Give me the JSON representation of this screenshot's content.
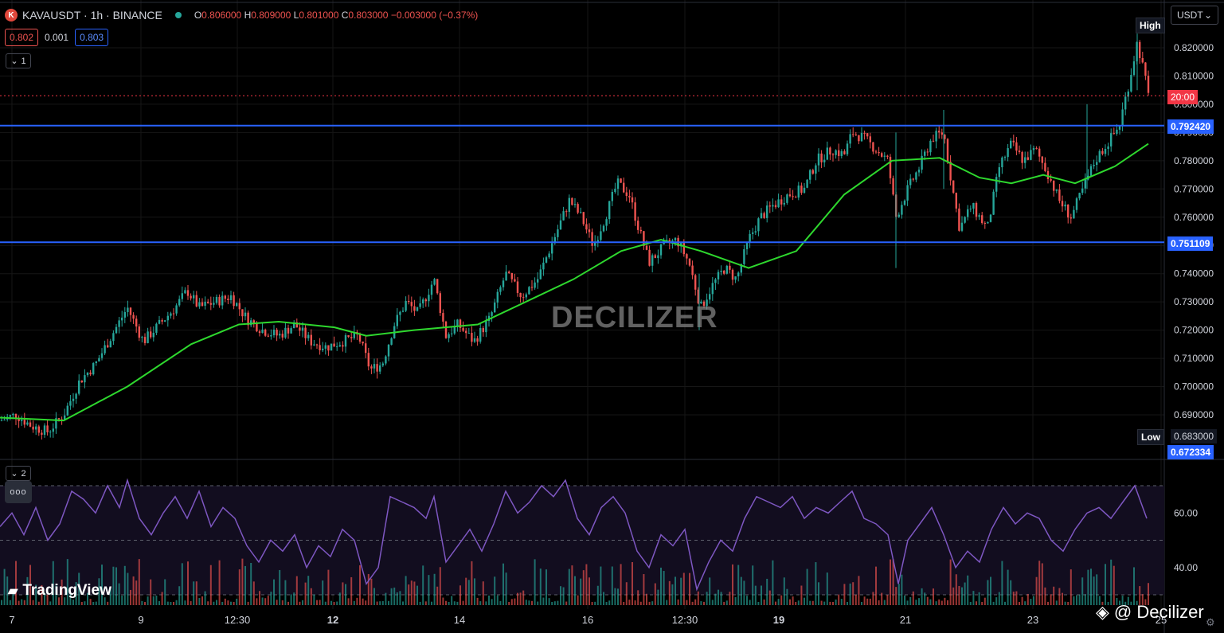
{
  "header": {
    "symbol": "KAVAUSDT · 1h · BINANCE",
    "open_label": "O",
    "open": "0.806000",
    "high_label": "H",
    "high": "0.809000",
    "low_label": "L",
    "low": "0.801000",
    "close_label": "C",
    "close": "0.803000",
    "change": "−0.003000 (−0.37%)",
    "sell_price": "0.802",
    "spread": "0.001",
    "buy_price": "0.803",
    "pane1_count": "1",
    "pane2_count": "2",
    "more_dots": "ooo"
  },
  "currency": "USDT",
  "branding": {
    "tradingview": "TradingView",
    "watermark": "DECILIZER",
    "credit": "@ Decilizer"
  },
  "price_tags": {
    "high_label": "High",
    "low_label": "Low",
    "low_value": "0.683000",
    "low_band": "0.672334",
    "countdown": "20:00",
    "resistance": "0.792420",
    "support": "0.751109"
  },
  "colors": {
    "bull": "#26a69a",
    "bear": "#ef5350",
    "ma": "#2ed82e",
    "rsi": "#7e57c2",
    "level": "#2962ff",
    "last_price": "#f23645"
  },
  "chart_data": {
    "type": "candlestick",
    "symbol": "KAVAUSDT",
    "interval": "1h",
    "price_axis": {
      "min": 0.683,
      "max": 0.825,
      "ticks": [
        "0.820000",
        "0.810000",
        "0.800000",
        "0.790000",
        "0.780000",
        "0.770000",
        "0.760000",
        "0.750000",
        "0.740000",
        "0.730000",
        "0.720000",
        "0.710000",
        "0.700000",
        "0.690000"
      ]
    },
    "time_axis": [
      "7",
      "9",
      "12:30",
      "12",
      "14",
      "16",
      "12:30",
      "19",
      "21",
      "23",
      "25"
    ],
    "horizontal_levels": [
      0.79242,
      0.751109
    ],
    "last_price": 0.803,
    "high": 0.825,
    "low": 0.683,
    "close_path": [
      [
        0,
        0.688
      ],
      [
        20,
        0.69
      ],
      [
        40,
        0.686
      ],
      [
        60,
        0.684
      ],
      [
        80,
        0.69
      ],
      [
        100,
        0.702
      ],
      [
        120,
        0.708
      ],
      [
        140,
        0.718
      ],
      [
        160,
        0.728
      ],
      [
        180,
        0.716
      ],
      [
        200,
        0.722
      ],
      [
        220,
        0.728
      ],
      [
        235,
        0.734
      ],
      [
        250,
        0.728
      ],
      [
        270,
        0.73
      ],
      [
        290,
        0.732
      ],
      [
        310,
        0.724
      ],
      [
        330,
        0.72
      ],
      [
        350,
        0.718
      ],
      [
        370,
        0.722
      ],
      [
        390,
        0.716
      ],
      [
        410,
        0.714
      ],
      [
        430,
        0.716
      ],
      [
        450,
        0.718
      ],
      [
        465,
        0.706
      ],
      [
        480,
        0.708
      ],
      [
        495,
        0.722
      ],
      [
        510,
        0.73
      ],
      [
        525,
        0.726
      ],
      [
        545,
        0.738
      ],
      [
        560,
        0.718
      ],
      [
        575,
        0.722
      ],
      [
        595,
        0.716
      ],
      [
        615,
        0.724
      ],
      [
        635,
        0.74
      ],
      [
        655,
        0.732
      ],
      [
        675,
        0.738
      ],
      [
        695,
        0.752
      ],
      [
        715,
        0.766
      ],
      [
        730,
        0.76
      ],
      [
        745,
        0.75
      ],
      [
        760,
        0.76
      ],
      [
        775,
        0.772
      ],
      [
        790,
        0.768
      ],
      [
        800,
        0.758
      ],
      [
        815,
        0.744
      ],
      [
        835,
        0.75
      ],
      [
        850,
        0.752
      ],
      [
        865,
        0.744
      ],
      [
        880,
        0.728
      ],
      [
        895,
        0.736
      ],
      [
        910,
        0.742
      ],
      [
        925,
        0.738
      ],
      [
        940,
        0.752
      ],
      [
        955,
        0.76
      ],
      [
        970,
        0.764
      ],
      [
        990,
        0.768
      ],
      [
        1010,
        0.77
      ],
      [
        1025,
        0.78
      ],
      [
        1045,
        0.784
      ],
      [
        1060,
        0.782
      ],
      [
        1070,
        0.79
      ],
      [
        1085,
        0.788
      ],
      [
        1100,
        0.784
      ],
      [
        1115,
        0.78
      ],
      [
        1125,
        0.76
      ],
      [
        1140,
        0.77
      ],
      [
        1155,
        0.778
      ],
      [
        1170,
        0.788
      ],
      [
        1185,
        0.79
      ],
      [
        1195,
        0.772
      ],
      [
        1205,
        0.756
      ],
      [
        1220,
        0.764
      ],
      [
        1240,
        0.756
      ],
      [
        1255,
        0.778
      ],
      [
        1270,
        0.786
      ],
      [
        1285,
        0.78
      ],
      [
        1300,
        0.784
      ],
      [
        1315,
        0.776
      ],
      [
        1330,
        0.766
      ],
      [
        1345,
        0.76
      ],
      [
        1360,
        0.77
      ],
      [
        1375,
        0.78
      ],
      [
        1390,
        0.786
      ],
      [
        1405,
        0.792
      ],
      [
        1418,
        0.808
      ],
      [
        1428,
        0.822
      ],
      [
        1436,
        0.812
      ],
      [
        1442,
        0.803
      ]
    ],
    "ma_path": [
      [
        0,
        0.689
      ],
      [
        80,
        0.688
      ],
      [
        160,
        0.7
      ],
      [
        240,
        0.715
      ],
      [
        300,
        0.722
      ],
      [
        350,
        0.723
      ],
      [
        420,
        0.721
      ],
      [
        460,
        0.718
      ],
      [
        520,
        0.72
      ],
      [
        600,
        0.722
      ],
      [
        660,
        0.73
      ],
      [
        720,
        0.738
      ],
      [
        780,
        0.748
      ],
      [
        830,
        0.752
      ],
      [
        880,
        0.748
      ],
      [
        940,
        0.742
      ],
      [
        1000,
        0.748
      ],
      [
        1060,
        0.768
      ],
      [
        1120,
        0.78
      ],
      [
        1180,
        0.781
      ],
      [
        1230,
        0.774
      ],
      [
        1270,
        0.772
      ],
      [
        1310,
        0.775
      ],
      [
        1350,
        0.772
      ],
      [
        1400,
        0.778
      ],
      [
        1442,
        0.786
      ]
    ],
    "rsi": {
      "levels": [
        70,
        50,
        30
      ],
      "ticks": [
        "60.00",
        "40.00"
      ],
      "path": [
        [
          0,
          55
        ],
        [
          15,
          60
        ],
        [
          30,
          52
        ],
        [
          45,
          62
        ],
        [
          60,
          50
        ],
        [
          75,
          56
        ],
        [
          90,
          68
        ],
        [
          105,
          65
        ],
        [
          120,
          60
        ],
        [
          135,
          70
        ],
        [
          150,
          62
        ],
        [
          160,
          72
        ],
        [
          175,
          58
        ],
        [
          190,
          52
        ],
        [
          205,
          60
        ],
        [
          220,
          66
        ],
        [
          235,
          58
        ],
        [
          250,
          68
        ],
        [
          265,
          55
        ],
        [
          280,
          62
        ],
        [
          295,
          58
        ],
        [
          310,
          48
        ],
        [
          325,
          42
        ],
        [
          340,
          50
        ],
        [
          355,
          46
        ],
        [
          370,
          52
        ],
        [
          385,
          40
        ],
        [
          400,
          48
        ],
        [
          415,
          44
        ],
        [
          430,
          54
        ],
        [
          445,
          50
        ],
        [
          460,
          34
        ],
        [
          475,
          40
        ],
        [
          490,
          66
        ],
        [
          505,
          64
        ],
        [
          520,
          62
        ],
        [
          535,
          58
        ],
        [
          545,
          66
        ],
        [
          560,
          42
        ],
        [
          575,
          48
        ],
        [
          590,
          54
        ],
        [
          605,
          46
        ],
        [
          620,
          56
        ],
        [
          635,
          68
        ],
        [
          650,
          60
        ],
        [
          665,
          64
        ],
        [
          680,
          70
        ],
        [
          695,
          66
        ],
        [
          710,
          72
        ],
        [
          725,
          58
        ],
        [
          740,
          52
        ],
        [
          755,
          62
        ],
        [
          770,
          66
        ],
        [
          785,
          60
        ],
        [
          800,
          46
        ],
        [
          815,
          40
        ],
        [
          830,
          52
        ],
        [
          845,
          48
        ],
        [
          860,
          54
        ],
        [
          875,
          32
        ],
        [
          890,
          42
        ],
        [
          905,
          50
        ],
        [
          920,
          46
        ],
        [
          935,
          58
        ],
        [
          950,
          66
        ],
        [
          965,
          64
        ],
        [
          980,
          62
        ],
        [
          995,
          66
        ],
        [
          1010,
          58
        ],
        [
          1025,
          62
        ],
        [
          1040,
          60
        ],
        [
          1055,
          64
        ],
        [
          1070,
          68
        ],
        [
          1085,
          58
        ],
        [
          1100,
          56
        ],
        [
          1115,
          52
        ],
        [
          1128,
          34
        ],
        [
          1140,
          50
        ],
        [
          1155,
          56
        ],
        [
          1170,
          62
        ],
        [
          1185,
          52
        ],
        [
          1200,
          40
        ],
        [
          1215,
          46
        ],
        [
          1230,
          42
        ],
        [
          1245,
          54
        ],
        [
          1260,
          62
        ],
        [
          1275,
          56
        ],
        [
          1290,
          60
        ],
        [
          1305,
          58
        ],
        [
          1320,
          50
        ],
        [
          1335,
          46
        ],
        [
          1350,
          54
        ],
        [
          1365,
          60
        ],
        [
          1380,
          62
        ],
        [
          1395,
          58
        ],
        [
          1410,
          64
        ],
        [
          1425,
          70
        ],
        [
          1440,
          58
        ]
      ]
    },
    "volume_seed": 7
  }
}
